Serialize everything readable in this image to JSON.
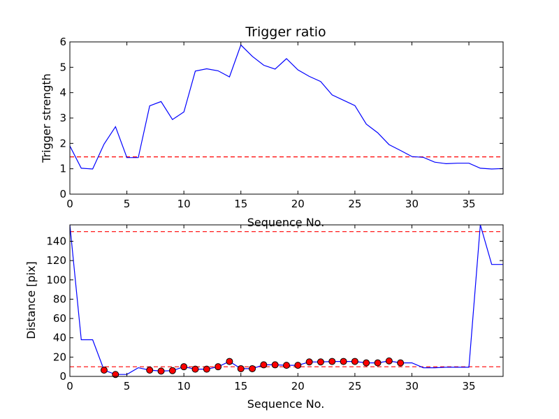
{
  "chart_data": [
    {
      "type": "line",
      "title": "Trigger ratio",
      "xlabel": "Sequence No.",
      "ylabel": "Trigger strength",
      "xlim": [
        0,
        38
      ],
      "ylim": [
        0,
        6
      ],
      "xticks": [
        "0",
        "5",
        "10",
        "15",
        "20",
        "25",
        "30",
        "35"
      ],
      "yticks": [
        "0",
        "1",
        "2",
        "3",
        "4",
        "5",
        "6"
      ],
      "grid": false,
      "line_color": "#0000ff",
      "threshold_color": "#ff0000",
      "x": [
        0,
        1,
        2,
        3,
        4,
        5,
        6,
        7,
        8,
        9,
        10,
        11,
        12,
        13,
        14,
        15,
        16,
        17,
        18,
        19,
        20,
        21,
        22,
        23,
        24,
        25,
        26,
        27,
        28,
        29,
        30,
        31,
        32,
        33,
        34,
        35,
        36,
        37,
        38
      ],
      "values": [
        1.9,
        1.02,
        0.99,
        1.97,
        2.66,
        1.44,
        1.44,
        3.48,
        3.65,
        2.94,
        3.24,
        4.85,
        4.94,
        4.86,
        4.62,
        5.88,
        5.43,
        5.08,
        4.93,
        5.34,
        4.9,
        4.64,
        4.44,
        3.91,
        3.7,
        3.49,
        2.76,
        2.42,
        1.95,
        1.72,
        1.48,
        1.45,
        1.26,
        1.2,
        1.22,
        1.22,
        1.02,
        0.99,
        1.01
      ],
      "threshold": 1.47
    },
    {
      "type": "line",
      "title": "",
      "xlabel": "Sequence No.",
      "ylabel": "Distance [pix]",
      "xlim": [
        0,
        38
      ],
      "ylim": [
        0,
        157
      ],
      "xticks": [
        "0",
        "5",
        "10",
        "15",
        "20",
        "25",
        "30",
        "35"
      ],
      "yticks": [
        "0",
        "20",
        "40",
        "60",
        "80",
        "100",
        "120",
        "140"
      ],
      "grid": false,
      "line_color": "#0000ff",
      "marker_color": "#ff0000",
      "threshold_color": "#ff0000",
      "x": [
        0,
        1,
        2,
        3,
        4,
        5,
        6,
        7,
        8,
        9,
        10,
        11,
        12,
        13,
        14,
        15,
        16,
        17,
        18,
        19,
        20,
        21,
        22,
        23,
        24,
        25,
        26,
        27,
        28,
        29,
        30,
        31,
        32,
        33,
        34,
        35,
        36,
        37,
        38
      ],
      "values": [
        157,
        38,
        38,
        6.5,
        2,
        2,
        9,
        6.5,
        5.5,
        6,
        10,
        7.5,
        7.5,
        10,
        15.5,
        8,
        8,
        12,
        12,
        11.5,
        11.5,
        15,
        15,
        15.5,
        15.5,
        15.5,
        14,
        14,
        16,
        14,
        14,
        9,
        9,
        9.5,
        9.5,
        9.5,
        157,
        116,
        116
      ],
      "markers_x": [
        3,
        4,
        7,
        8,
        9,
        10,
        11,
        12,
        13,
        14,
        15,
        16,
        17,
        18,
        19,
        20,
        21,
        22,
        23,
        24,
        25,
        26,
        27,
        28,
        29
      ],
      "markers_y": [
        6.5,
        2,
        6.5,
        5.5,
        6,
        10,
        7.5,
        7.5,
        10,
        15.5,
        8,
        8,
        12,
        12,
        11.5,
        11.5,
        15,
        15,
        15.5,
        15.5,
        15.5,
        14,
        14,
        16,
        14
      ],
      "thresholds": [
        150,
        10
      ]
    }
  ]
}
